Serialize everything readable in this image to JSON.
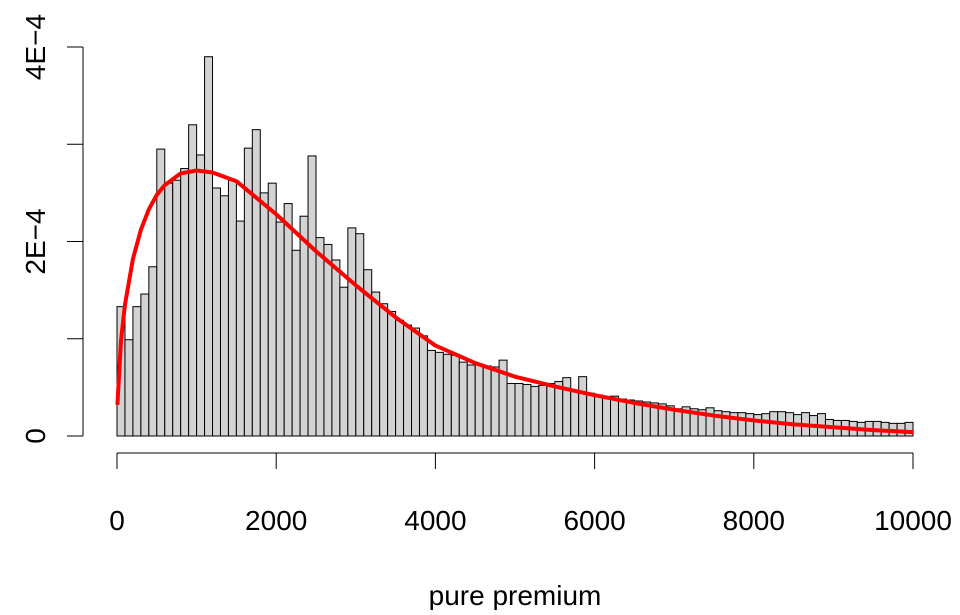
{
  "chart_data": [
    {
      "type": "histogram",
      "xlabel": "pure premium",
      "fill": "#d3d3d3",
      "edge": "#000000",
      "bins": [
        0,
        100,
        200,
        300,
        400,
        500,
        600,
        700,
        800,
        900,
        1000,
        1100,
        1200,
        1300,
        1400,
        1500,
        1600,
        1700,
        1800,
        1900,
        2000,
        2100,
        2200,
        2300,
        2400,
        2500,
        2600,
        2700,
        2800,
        2900,
        3000,
        3100,
        3200,
        3300,
        3400,
        3500,
        3600,
        3700,
        3800,
        3900,
        4000,
        4100,
        4200,
        4300,
        4400,
        4500,
        4600,
        4700,
        4800,
        4900,
        5000,
        5100,
        5200,
        5300,
        5400,
        5500,
        5600,
        5700,
        5800,
        5900,
        6000,
        6100,
        6200,
        6300,
        6400,
        6500,
        6600,
        6700,
        6800,
        6900,
        7000,
        7100,
        7200,
        7300,
        7400,
        7500,
        7600,
        7700,
        7800,
        7900,
        8000,
        8100,
        8200,
        8300,
        8400,
        8500,
        8600,
        8700,
        8800,
        8900,
        9000,
        9100,
        9200,
        9300,
        9400,
        9500,
        9600,
        9700,
        9800,
        9900,
        10000
      ],
      "values": [
        0.000133,
        9.9e-05,
        0.000133,
        0.000146,
        0.000174,
        0.000295,
        0.00026,
        0.000263,
        0.000275,
        0.00032,
        0.000289,
        0.00039,
        0.000255,
        0.000247,
        0.000263,
        0.000221,
        0.000296,
        0.000315,
        0.00025,
        0.00026,
        0.00022,
        0.000239,
        0.000191,
        0.000226,
        0.000288,
        0.000204,
        0.000197,
        0.000181,
        0.000153,
        0.000214,
        0.000208,
        0.000171,
        0.000148,
        0.000136,
        0.000128,
        0.000119,
        0.000114,
        0.000111,
        0.000103,
        8.8e-05,
        8.6e-05,
        8.4e-05,
        8.3e-05,
        7.6e-05,
        7.3e-05,
        7.4e-05,
        7.2e-05,
        7.1e-05,
        7.8e-05,
        5.4e-05,
        5.4e-05,
        5.3e-05,
        5.1e-05,
        5.2e-05,
        5.4e-05,
        5.6e-05,
        6e-05,
        4.6e-05,
        6.1e-05,
        4.4e-05,
        4.2e-05,
        4e-05,
        4.1e-05,
        3.8e-05,
        3.7e-05,
        3.6e-05,
        3.5e-05,
        3.4e-05,
        3.3e-05,
        3.1e-05,
        2.8e-05,
        3e-05,
        2.8e-05,
        2.7e-05,
        2.9e-05,
        2.6e-05,
        2.5e-05,
        2.4e-05,
        2.4e-05,
        2.3e-05,
        2.2e-05,
        2.3e-05,
        2.5e-05,
        2.5e-05,
        2.4e-05,
        2.2e-05,
        2.4e-05,
        2.1e-05,
        2.3e-05,
        1.7e-05,
        1.6e-05,
        1.6e-05,
        1.5e-05,
        1.4e-05,
        1.5e-05,
        1.5e-05,
        1.4e-05,
        1.3e-05,
        1.3e-05,
        1.4e-05
      ],
      "xlim": [
        0,
        10000
      ],
      "ylim": [
        0,
        0.0004
      ],
      "xticks": [
        0,
        2000,
        4000,
        6000,
        8000,
        10000
      ],
      "yticks": [
        0,
        {
          "value": 0.0001,
          "label": null
        },
        {
          "value": 0.0002,
          "label": "2E−4"
        },
        {
          "value": 0.0003,
          "label": null
        },
        {
          "value": 0.0004,
          "label": "4E−4"
        }
      ]
    },
    {
      "type": "line",
      "color": "#ff0000",
      "x": [
        5,
        50,
        100,
        200,
        300,
        400,
        500,
        600,
        800,
        1000,
        1200,
        1500,
        2000,
        2500,
        3000,
        3500,
        4000,
        4500,
        5000,
        5500,
        6000,
        6500,
        7000,
        7500,
        8000,
        8500,
        9000,
        9500,
        10000
      ],
      "values": [
        3.2e-05,
        9.8e-05,
        0.000135,
        0.000182,
        0.000212,
        0.000233,
        0.000248,
        0.000258,
        0.00027,
        0.000273,
        0.000271,
        0.000262,
        0.000228,
        0.00019,
        0.000155,
        0.000122,
        9.3e-05,
        7.5e-05,
        6.1e-05,
        5.1e-05,
        4.2e-05,
        3.4e-05,
        2.7e-05,
        2.1e-05,
        1.6e-05,
        1.2e-05,
        9e-06,
        6e-06,
        4e-06
      ]
    }
  ]
}
